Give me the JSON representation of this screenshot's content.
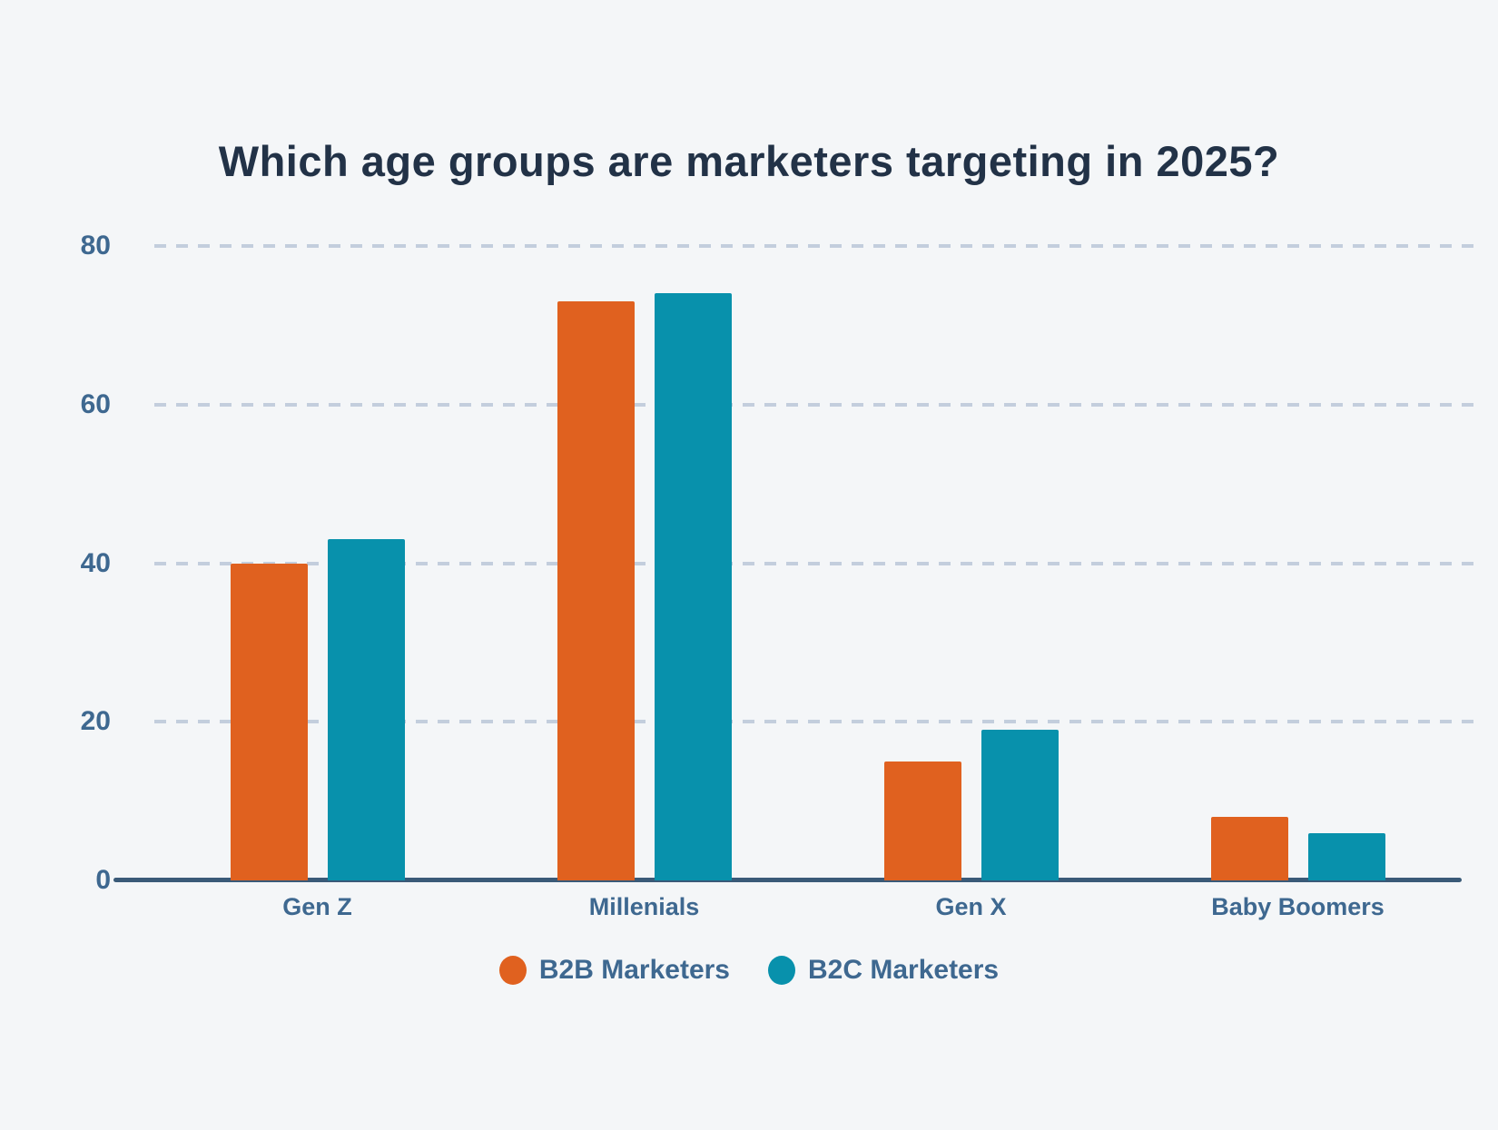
{
  "background_color": "#f4f6f8",
  "chart_data": {
    "type": "bar",
    "title": "Which age groups are marketers targeting in 2025?",
    "title_color": "#223247",
    "categories": [
      "Gen Z",
      "Millenials",
      "Gen X",
      "Baby Boomers"
    ],
    "series": [
      {
        "name": "B2B Marketers",
        "color": "#e0611f",
        "values": [
          40,
          73,
          15,
          8
        ]
      },
      {
        "name": "B2C Marketers",
        "color": "#0891ac",
        "values": [
          43,
          74,
          19,
          6
        ]
      }
    ],
    "xlabel": "",
    "ylabel": "",
    "ylim": [
      0,
      80
    ],
    "yticks": [
      0,
      20,
      40,
      60,
      80
    ],
    "grid": "horizontal-dashed",
    "gridline_color": "#c3cedd",
    "axis_line_color": "#3a5a78",
    "tick_label_color": "#3e6890",
    "legend_position": "bottom"
  }
}
